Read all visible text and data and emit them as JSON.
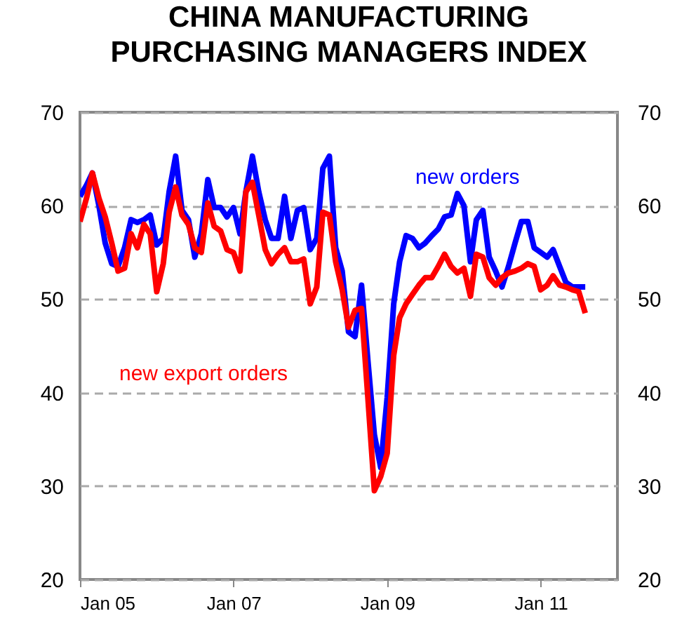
{
  "chart_data": {
    "type": "line",
    "title": "CHINA MANUFACTURING PURCHASING MANAGERS INDEX",
    "x": [
      "2005-01",
      "2005-02",
      "2005-03",
      "2005-04",
      "2005-05",
      "2005-06",
      "2005-07",
      "2005-08",
      "2005-09",
      "2005-10",
      "2005-11",
      "2005-12",
      "2006-01",
      "2006-02",
      "2006-03",
      "2006-04",
      "2006-05",
      "2006-06",
      "2006-07",
      "2006-08",
      "2006-09",
      "2006-10",
      "2006-11",
      "2006-12",
      "2007-01",
      "2007-02",
      "2007-03",
      "2007-04",
      "2007-05",
      "2007-06",
      "2007-07",
      "2007-08",
      "2007-09",
      "2007-10",
      "2007-11",
      "2007-12",
      "2008-01",
      "2008-02",
      "2008-03",
      "2008-04",
      "2008-05",
      "2008-06",
      "2008-07",
      "2008-08",
      "2008-09",
      "2008-10",
      "2008-11",
      "2008-12",
      "2009-01",
      "2009-02",
      "2009-03",
      "2009-04",
      "2009-05",
      "2009-06",
      "2009-07",
      "2009-08",
      "2009-09",
      "2009-10",
      "2009-11",
      "2009-12",
      "2010-01",
      "2010-02",
      "2010-03",
      "2010-04",
      "2010-05",
      "2010-06",
      "2010-07",
      "2010-08",
      "2010-09",
      "2010-10",
      "2010-11",
      "2010-12",
      "2011-01",
      "2011-02",
      "2011-03",
      "2011-04",
      "2011-05",
      "2011-06",
      "2011-07",
      "2011-08"
    ],
    "series": [
      {
        "name": "new orders",
        "color": "#0000ff",
        "values": [
          61,
          62.2,
          63.5,
          60,
          56,
          53.8,
          53.5,
          55.5,
          58.5,
          58.2,
          58.5,
          59,
          55.8,
          56.5,
          61.5,
          65.3,
          59.5,
          58.5,
          54.5,
          57,
          62.8,
          59.8,
          59.8,
          58.8,
          59.8,
          57,
          61.5,
          65.3,
          61.5,
          58.5,
          56.5,
          56.5,
          61,
          56.5,
          59.5,
          59.8,
          55.3,
          56.5,
          64,
          65.3,
          55.5,
          53,
          46.5,
          46,
          51.5,
          43.5,
          35.5,
          32,
          39.5,
          49.5,
          54,
          56.8,
          56.5,
          55.5,
          56,
          56.8,
          57.5,
          58.8,
          59,
          61.3,
          60,
          54,
          58.5,
          59.5,
          54.5,
          53,
          51.3,
          53.5,
          56,
          58.3,
          58.3,
          55.5,
          55,
          54.5,
          55.3,
          53.5,
          51.8,
          51.3,
          51.3,
          51.3
        ]
      },
      {
        "name": "new export orders",
        "color": "#ff0000",
        "values": [
          58.3,
          60.8,
          63.5,
          60.8,
          58.8,
          56,
          53,
          53.3,
          57,
          55.5,
          58,
          57,
          50.8,
          53.8,
          59.3,
          62,
          59,
          58,
          55.5,
          55,
          60.3,
          57.8,
          57.3,
          55.3,
          55,
          53,
          61.5,
          62.5,
          59,
          55.3,
          53.8,
          54.8,
          55.5,
          54,
          54,
          54.3,
          49.5,
          51.3,
          59.3,
          59,
          54,
          51,
          47,
          48.8,
          49,
          39.5,
          29.5,
          31,
          33.5,
          44,
          48,
          49.5,
          50.5,
          51.5,
          52.3,
          52.3,
          53.5,
          54.8,
          53.5,
          52.8,
          53.3,
          50.3,
          54.8,
          54.5,
          52.3,
          51.5,
          52.3,
          52.8,
          53,
          53.3,
          53.8,
          53.5,
          51,
          51.5,
          52.5,
          51.5,
          51.3,
          51,
          50.8,
          48.5
        ]
      }
    ],
    "xlim": [
      "2005-01",
      "2012-01"
    ],
    "xticks": [
      {
        "value": "2005-01",
        "label": "Jan 05"
      },
      {
        "value": "2007-01",
        "label": "Jan 07"
      },
      {
        "value": "2009-01",
        "label": "Jan 09"
      },
      {
        "value": "2011-01",
        "label": "Jan 11"
      }
    ],
    "ylim": [
      20,
      70
    ],
    "yticks": [
      20,
      30,
      40,
      50,
      60,
      70
    ],
    "y2lim": [
      20,
      70
    ],
    "y2ticks": [
      20,
      30,
      40,
      50,
      60,
      70
    ],
    "grid": "y"
  }
}
